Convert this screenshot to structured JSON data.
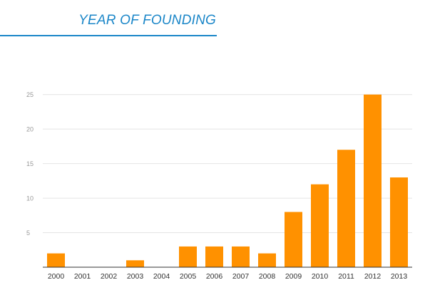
{
  "page": {
    "heading": "YEAR OF FOUNDING",
    "heading_color": "#1a86c8"
  },
  "chart_data": {
    "type": "bar",
    "title": "",
    "xlabel": "",
    "ylabel": "",
    "categories": [
      "2000",
      "2001",
      "2002",
      "2003",
      "2004",
      "2005",
      "2006",
      "2007",
      "2008",
      "2009",
      "2010",
      "2011",
      "2012",
      "2013"
    ],
    "values": [
      2,
      0,
      0,
      1,
      0,
      3,
      3,
      3,
      2,
      8,
      12,
      17,
      25,
      13
    ],
    "ylim": [
      0,
      26
    ],
    "yticks": [
      5,
      10,
      15,
      20,
      25
    ],
    "grid": true,
    "legend": "none",
    "bar_color": "#ff9100"
  }
}
